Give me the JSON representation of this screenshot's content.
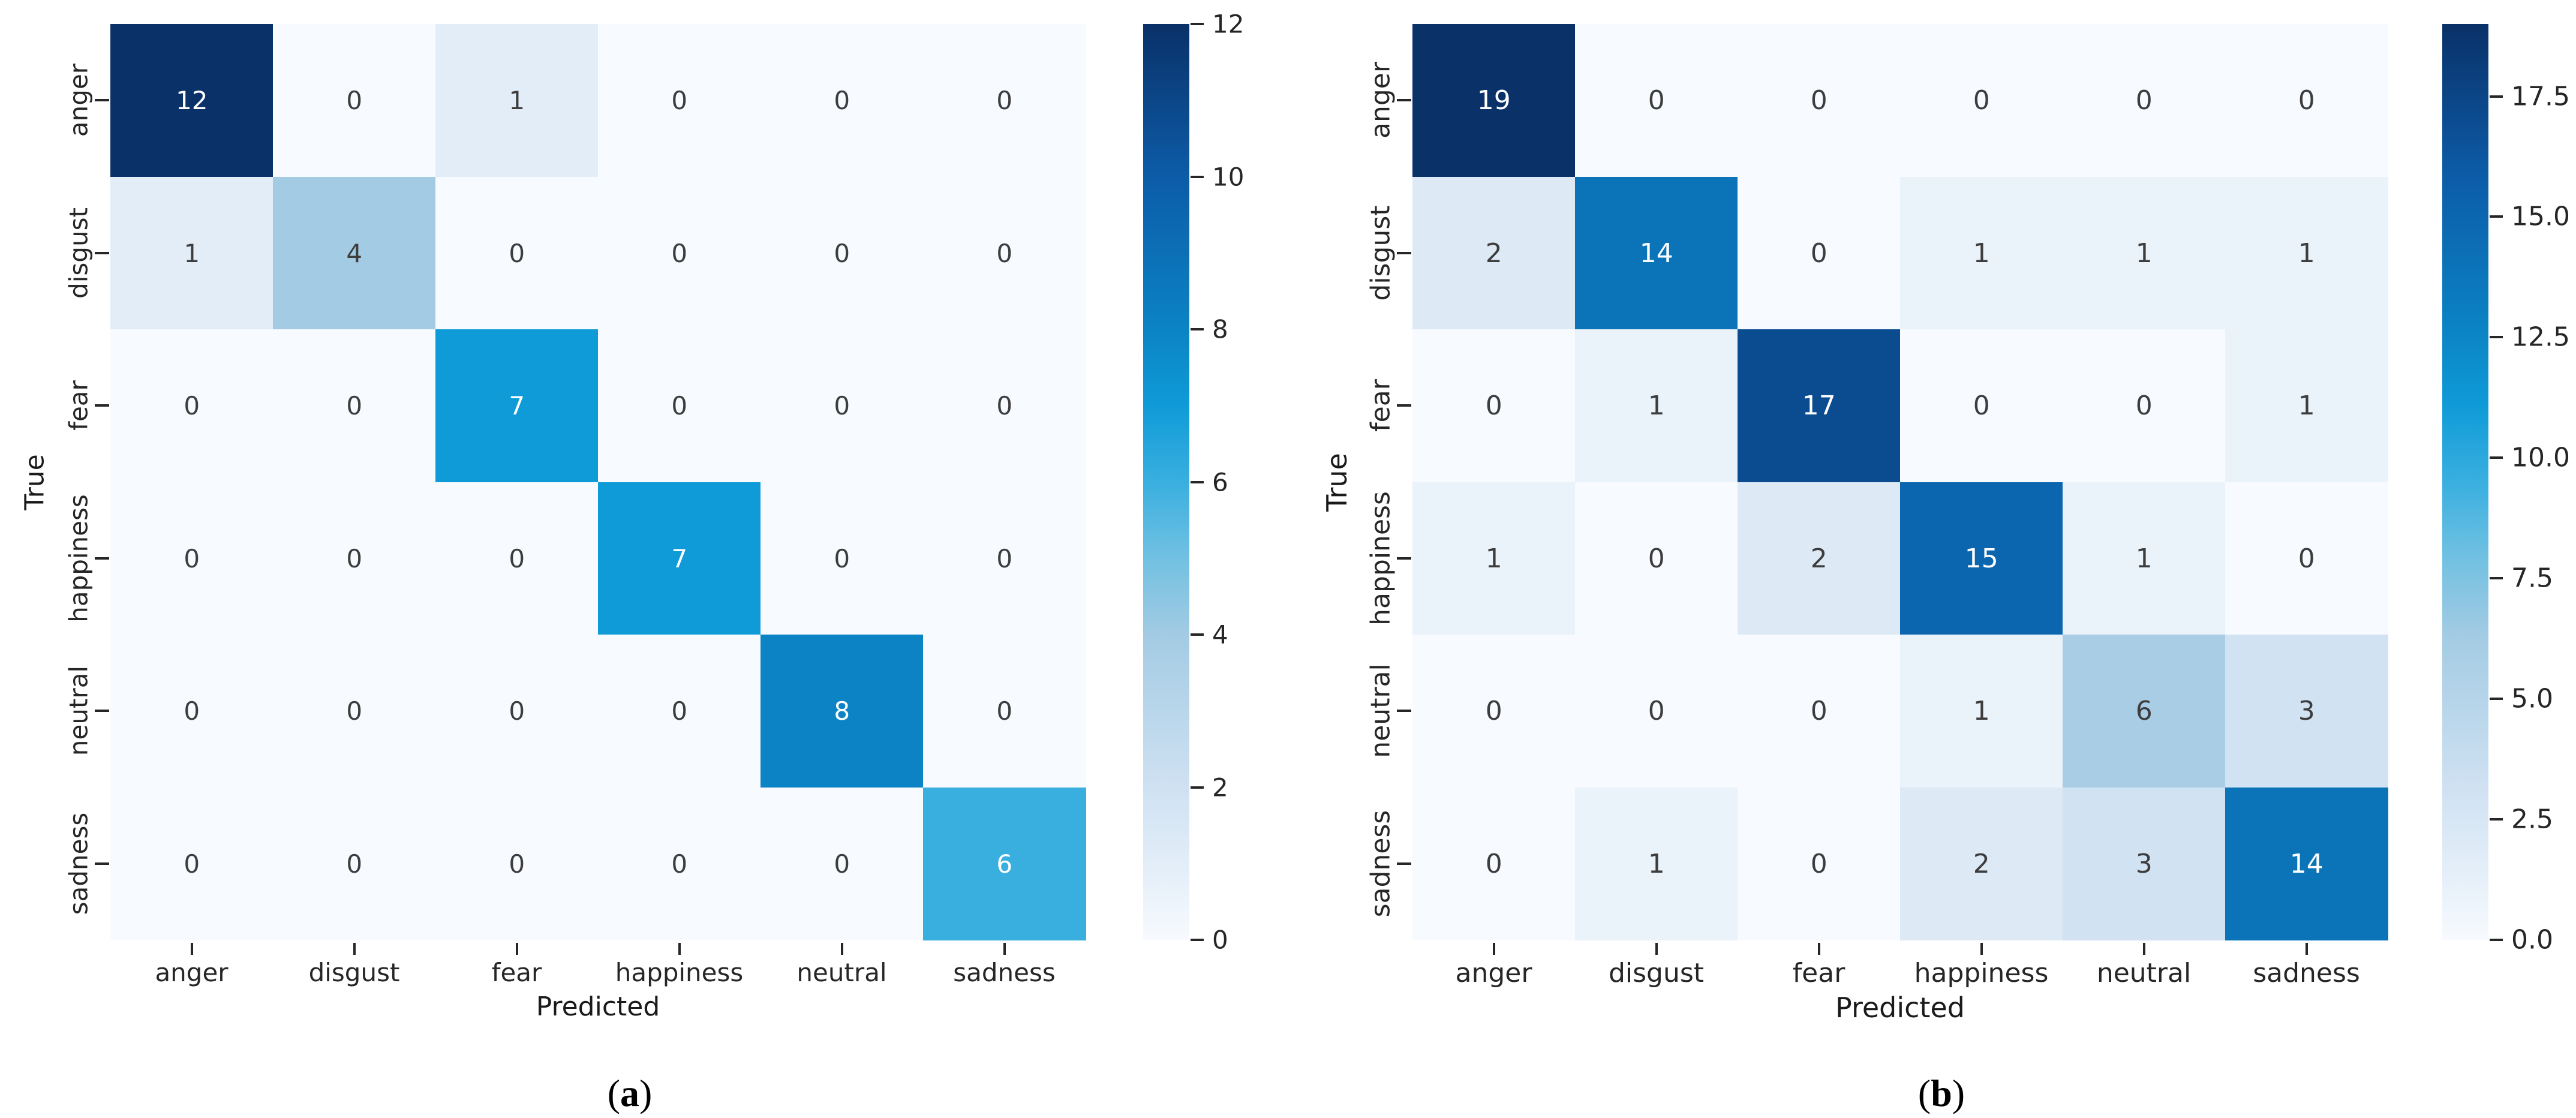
{
  "figure": {
    "background": "#ffffff",
    "tick_color": "#262626",
    "annotation_dark": "#3d3d3d",
    "annotation_light": "#ffffff",
    "white_text_threshold": 0.45
  },
  "colormap_stops": [
    [
      0.0,
      "#f7fafe"
    ],
    [
      0.083,
      "#e2edf8"
    ],
    [
      0.167,
      "#cfe1f2"
    ],
    [
      0.333,
      "#a3cbe3"
    ],
    [
      0.42,
      "#6fc0e2"
    ],
    [
      0.5,
      "#39afdf"
    ],
    [
      0.583,
      "#0f9bd8"
    ],
    [
      0.667,
      "#0b83c4"
    ],
    [
      0.833,
      "#0c5ca8"
    ],
    [
      1.0,
      "#0a3168"
    ]
  ],
  "chart_data": [
    {
      "type": "heatmap",
      "caption_open": "(",
      "caption_letter": "a",
      "caption_close": ")",
      "xlabel": "Predicted",
      "ylabel": "True",
      "x_labels": [
        "anger",
        "disgust",
        "fear",
        "happiness",
        "neutral",
        "sadness"
      ],
      "y_labels": [
        "anger",
        "disgust",
        "fear",
        "happiness",
        "neutral",
        "sadness"
      ],
      "values": [
        [
          12,
          0,
          1,
          0,
          0,
          0
        ],
        [
          1,
          4,
          0,
          0,
          0,
          0
        ],
        [
          0,
          0,
          7,
          0,
          0,
          0
        ],
        [
          0,
          0,
          0,
          7,
          0,
          0
        ],
        [
          0,
          0,
          0,
          0,
          8,
          0
        ],
        [
          0,
          0,
          0,
          0,
          0,
          6
        ]
      ],
      "vmin": 0,
      "vmax": 12,
      "colormap": "Blues",
      "grid": false,
      "colorbar_position": "right",
      "colorbar_tick_values": [
        0,
        2,
        4,
        6,
        8,
        10,
        12
      ],
      "colorbar_tick_labels": [
        "0",
        "2",
        "4",
        "6",
        "8",
        "10",
        "12"
      ]
    },
    {
      "type": "heatmap",
      "caption_open": "(",
      "caption_letter": "b",
      "caption_close": ")",
      "xlabel": "Predicted",
      "ylabel": "True",
      "x_labels": [
        "anger",
        "disgust",
        "fear",
        "happiness",
        "neutral",
        "sadness"
      ],
      "y_labels": [
        "anger",
        "disgust",
        "fear",
        "happiness",
        "neutral",
        "sadness"
      ],
      "values": [
        [
          19,
          0,
          0,
          0,
          0,
          0
        ],
        [
          2,
          14,
          0,
          1,
          1,
          1
        ],
        [
          0,
          1,
          17,
          0,
          0,
          1
        ],
        [
          1,
          0,
          2,
          15,
          1,
          0
        ],
        [
          0,
          0,
          0,
          1,
          6,
          3
        ],
        [
          0,
          1,
          0,
          2,
          3,
          14
        ]
      ],
      "vmin": 0,
      "vmax": 19,
      "colormap": "Blues",
      "grid": false,
      "colorbar_position": "right",
      "colorbar_tick_values": [
        0,
        2.5,
        5,
        7.5,
        10,
        12.5,
        15,
        17.5
      ],
      "colorbar_tick_labels": [
        "0.0",
        "2.5",
        "5.0",
        "7.5",
        "10.0",
        "12.5",
        "15.0",
        "17.5"
      ]
    }
  ]
}
